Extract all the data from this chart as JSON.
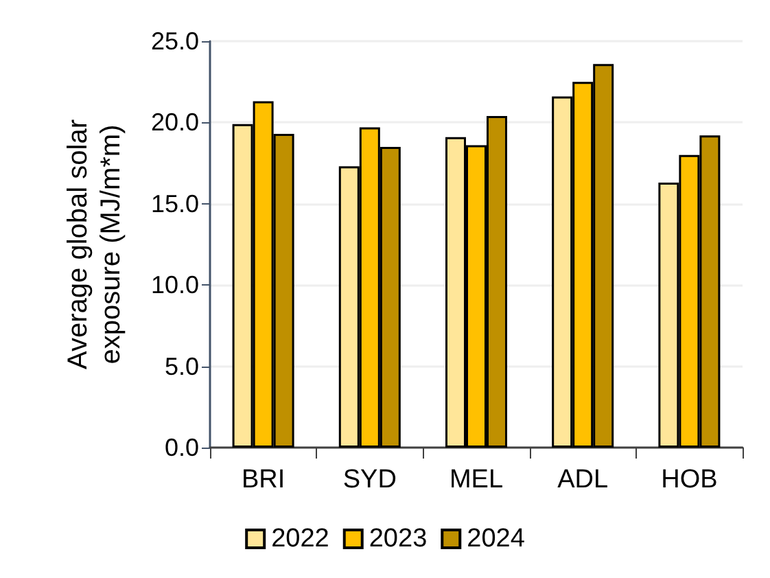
{
  "chart_data": {
    "type": "bar",
    "ylabel": "Average global solar exposure (MJ/m*m)",
    "categories": [
      "BRI",
      "SYD",
      "MEL",
      "ADL",
      "HOB"
    ],
    "series": [
      {
        "name": "2022",
        "color": "#ffe699",
        "values": [
          19.9,
          17.3,
          19.1,
          21.6,
          16.3
        ]
      },
      {
        "name": "2023",
        "color": "#ffc000",
        "values": [
          21.3,
          19.7,
          18.6,
          22.5,
          18.0
        ]
      },
      {
        "name": "2024",
        "color": "#bf9000",
        "values": [
          19.3,
          18.5,
          20.4,
          23.6,
          19.2
        ]
      }
    ],
    "ylim": [
      0,
      25
    ],
    "yticks": [
      {
        "value": 0,
        "label": "0.0"
      },
      {
        "value": 5,
        "label": "5.0"
      },
      {
        "value": 10,
        "label": "10.0"
      },
      {
        "value": 15,
        "label": "15.0"
      },
      {
        "value": 20,
        "label": "20.0"
      },
      {
        "value": 25,
        "label": "25.0"
      }
    ],
    "grid": "y",
    "legend": "bottom"
  }
}
